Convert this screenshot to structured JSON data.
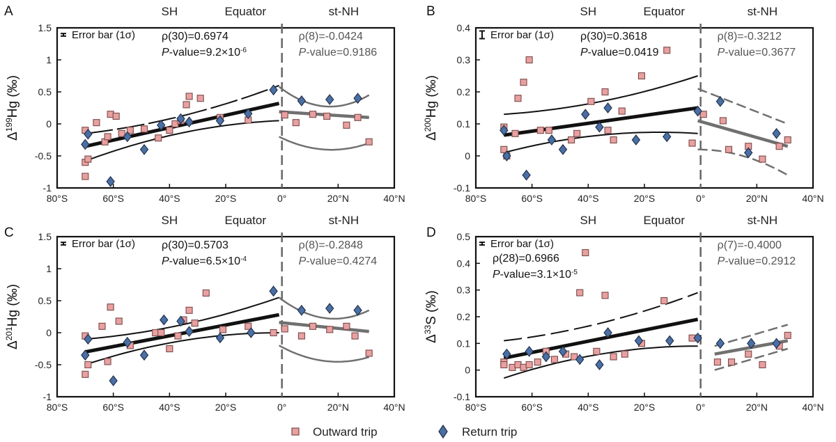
{
  "figure": {
    "legend": {
      "outward_label": "Outward trip",
      "return_label": "Return trip"
    },
    "colors": {
      "outward_fill": "#e8a0a0",
      "outward_stroke": "#7a4a4a",
      "return_fill": "#4a6fa5",
      "return_stroke": "#1e2c44",
      "fit_sh": "#111111",
      "fit_nh": "#707070",
      "equator": "#666666"
    },
    "region_labels": {
      "sh": "SH",
      "equator": "Equator",
      "nh": "st-NH"
    }
  },
  "chart_data": [
    {
      "panel": "A",
      "type": "scatter",
      "ylabel_prefix": "Δ",
      "ylabel_sup": "199",
      "ylabel_rest": "Hg (‰)",
      "xlim": [
        -80,
        40
      ],
      "ylim": [
        -1,
        1.5
      ],
      "xticks": [
        -80,
        -60,
        -40,
        -20,
        0,
        20,
        40
      ],
      "xtick_labels": [
        "80°S",
        "60°S",
        "40°S",
        "20°S",
        "0°",
        "20°N",
        "40°N"
      ],
      "yticks": [
        -1,
        -0.5,
        0,
        0.5,
        1,
        1.5
      ],
      "ytick_labels": [
        "-1",
        "-0.5",
        "0",
        "0.5",
        "1",
        "1.5"
      ],
      "error_bar_label": "Error bar (1σ)",
      "error_bar_halfwidth": 0.02,
      "sh_stats": {
        "rho": "ρ(30)=0.6974",
        "p_label": "P",
        "p_value": "-value=9.2×10",
        "p_exp": "-6"
      },
      "nh_stats": {
        "rho": "ρ(8)=-0.0424",
        "p_label": "P",
        "p_value": "-value=0.9186",
        "p_exp": ""
      },
      "outward": [
        [
          -70,
          -0.82
        ],
        [
          -70,
          -0.6
        ],
        [
          -69,
          -0.55
        ],
        [
          -70,
          -0.1
        ],
        [
          -66,
          0.02
        ],
        [
          -63,
          -0.28
        ],
        [
          -62,
          -0.2
        ],
        [
          -61,
          0.15
        ],
        [
          -59,
          0.12
        ],
        [
          -57,
          -0.15
        ],
        [
          -54,
          -0.1
        ],
        [
          -49,
          -0.08
        ],
        [
          -44,
          -0.22
        ],
        [
          -40,
          -0.1
        ],
        [
          -38,
          0.0
        ],
        [
          -34,
          0.3
        ],
        [
          -33,
          0.43
        ],
        [
          -29,
          0.4
        ],
        [
          -22,
          0.1
        ],
        [
          -12,
          0.06
        ],
        [
          5,
          0.02
        ],
        [
          11,
          0.15
        ],
        [
          16,
          0.12
        ],
        [
          23,
          -0.02
        ],
        [
          27,
          0.1
        ],
        [
          31,
          -0.28
        ],
        [
          1,
          0.14
        ],
        [
          -36,
          0.05
        ]
      ],
      "return": [
        [
          -70,
          -0.32
        ],
        [
          -69,
          -0.16
        ],
        [
          -61,
          -0.9
        ],
        [
          -55,
          -0.2
        ],
        [
          -49,
          -0.4
        ],
        [
          -43,
          -0.02
        ],
        [
          -36,
          0.08
        ],
        [
          -33,
          0.03
        ],
        [
          -22,
          0.05
        ],
        [
          -12,
          0.16
        ],
        [
          -3,
          0.53
        ],
        [
          7,
          0.36
        ],
        [
          17,
          0.38
        ],
        [
          27,
          0.4
        ]
      ],
      "sh_fit": {
        "x": [
          -70,
          -1
        ],
        "mid": [
          -0.35,
          0.32
        ],
        "upper": [
          -0.15,
          0.6
        ],
        "lower": [
          -0.58,
          0.05
        ],
        "upper_dash": [
          -40,
          -10
        ]
      },
      "nh_fit": {
        "x": [
          -1,
          31
        ],
        "mid": [
          0.19,
          0.1
        ],
        "upper": [
          0.58,
          0.45
        ],
        "lower": [
          -0.2,
          -0.3
        ],
        "upper_bulge": 0.24,
        "lower_bulge": 0.0
      }
    },
    {
      "panel": "B",
      "type": "scatter",
      "ylabel_prefix": "Δ",
      "ylabel_sup": "200",
      "ylabel_rest": "Hg (‰)",
      "xlim": [
        -80,
        40
      ],
      "ylim": [
        -0.1,
        0.4
      ],
      "xticks": [
        -80,
        -60,
        -40,
        -20,
        0,
        20,
        40
      ],
      "xtick_labels": [
        "80°S",
        "60°S",
        "40°S",
        "20°S",
        "0°",
        "20°N",
        "40°N"
      ],
      "yticks": [
        -0.1,
        0,
        0.1,
        0.2,
        0.3,
        0.4
      ],
      "ytick_labels": [
        "-0.1",
        "0",
        "0.1",
        "0.2",
        "0.3",
        "0.4"
      ],
      "error_bar_label": "Error bar (1σ)",
      "error_bar_halfwidth": 0.012,
      "sh_stats": {
        "rho": "ρ(30)=0.3618",
        "p_label": "P",
        "p_value": "-value=0.0419",
        "p_exp": ""
      },
      "nh_stats": {
        "rho": "ρ(8)=-0.3212",
        "p_label": "P",
        "p_value": "-value=0.3677",
        "p_exp": ""
      },
      "outward": [
        [
          -70,
          0.09
        ],
        [
          -70,
          0.02
        ],
        [
          -69,
          0.0
        ],
        [
          -65,
          0.18
        ],
        [
          -63,
          0.23
        ],
        [
          -61,
          0.3
        ],
        [
          -57,
          0.08
        ],
        [
          -54,
          0.08
        ],
        [
          -46,
          0.05
        ],
        [
          -44,
          0.07
        ],
        [
          -39,
          0.17
        ],
        [
          -34,
          0.2
        ],
        [
          -33,
          0.08
        ],
        [
          -31,
          0.05
        ],
        [
          -28,
          0.14
        ],
        [
          -21,
          0.25
        ],
        [
          -12,
          0.33
        ],
        [
          -3,
          0.04
        ],
        [
          1,
          0.13
        ],
        [
          8,
          0.11
        ],
        [
          10,
          0.02
        ],
        [
          17,
          0.03
        ],
        [
          22,
          -0.01
        ],
        [
          28,
          0.03
        ],
        [
          31,
          0.05
        ],
        [
          -66,
          0.07
        ]
      ],
      "return": [
        [
          -70,
          0.08
        ],
        [
          -69,
          0.0
        ],
        [
          -62,
          -0.06
        ],
        [
          -53,
          0.05
        ],
        [
          -49,
          0.02
        ],
        [
          -41,
          0.13
        ],
        [
          -36,
          0.09
        ],
        [
          -33,
          0.15
        ],
        [
          -23,
          0.05
        ],
        [
          -12,
          0.06
        ],
        [
          -1,
          0.14
        ],
        [
          7,
          0.17
        ],
        [
          17,
          0.01
        ],
        [
          27,
          0.07
        ]
      ],
      "sh_fit": {
        "x": [
          -70,
          -1
        ],
        "mid": [
          0.065,
          0.15
        ],
        "upper": [
          0.13,
          0.25
        ],
        "lower": [
          0.01,
          0.07
        ],
        "upper_dash": null
      },
      "nh_fit": {
        "x": [
          -1,
          31
        ],
        "mid": [
          0.11,
          0.03
        ],
        "upper": [
          0.21,
          0.1
        ],
        "lower": [
          0.02,
          -0.06
        ],
        "upper_bulge": 0.0,
        "lower_bulge": -0.02
      }
    },
    {
      "panel": "C",
      "type": "scatter",
      "ylabel_prefix": "Δ",
      "ylabel_sup": "201",
      "ylabel_rest": "Hg (‰)",
      "xlim": [
        -80,
        40
      ],
      "ylim": [
        -1,
        1.5
      ],
      "xticks": [
        -80,
        -60,
        -40,
        -20,
        0,
        20,
        40
      ],
      "xtick_labels": [
        "80°S",
        "60°S",
        "40°S",
        "20°S",
        "0°",
        "20°N",
        "40°N"
      ],
      "yticks": [
        -1,
        -0.5,
        0,
        0.5,
        1,
        1.5
      ],
      "ytick_labels": [
        "-1",
        "-0.5",
        "0",
        "0.5",
        "1",
        "1.5"
      ],
      "error_bar_label": "Error bar (1σ)",
      "error_bar_halfwidth": 0.02,
      "sh_stats": {
        "rho": "ρ(30)=0.5703",
        "p_label": "P",
        "p_value": "-value=6.5×10",
        "p_exp": "-4"
      },
      "nh_stats": {
        "rho": "ρ(8)=-0.2848",
        "p_label": "P",
        "p_value": "-value=0.4274",
        "p_exp": ""
      },
      "outward": [
        [
          -70,
          -0.65
        ],
        [
          -69,
          -0.5
        ],
        [
          -70,
          -0.05
        ],
        [
          -64,
          0.1
        ],
        [
          -62,
          -0.45
        ],
        [
          -61,
          0.4
        ],
        [
          -58,
          0.18
        ],
        [
          -54,
          -0.2
        ],
        [
          -45,
          0.0
        ],
        [
          -40,
          -0.25
        ],
        [
          -37,
          -0.05
        ],
        [
          -35,
          0.2
        ],
        [
          -33,
          0.35
        ],
        [
          -31,
          0.15
        ],
        [
          -27,
          0.62
        ],
        [
          -21,
          0.05
        ],
        [
          -12,
          0.1
        ],
        [
          -3,
          0.0
        ],
        [
          1,
          0.06
        ],
        [
          7,
          -0.05
        ],
        [
          11,
          0.1
        ],
        [
          17,
          0.05
        ],
        [
          23,
          0.1
        ],
        [
          26,
          -0.05
        ],
        [
          31,
          -0.32
        ],
        [
          -43,
          0.0
        ]
      ],
      "return": [
        [
          -70,
          -0.35
        ],
        [
          -69,
          -0.1
        ],
        [
          -60,
          -0.75
        ],
        [
          -55,
          -0.15
        ],
        [
          -49,
          -0.35
        ],
        [
          -42,
          0.2
        ],
        [
          -36,
          0.18
        ],
        [
          -33,
          0.02
        ],
        [
          -22,
          -0.08
        ],
        [
          -11,
          0.0
        ],
        [
          -3,
          0.65
        ],
        [
          7,
          0.35
        ],
        [
          17,
          0.38
        ],
        [
          27,
          0.35
        ]
      ],
      "sh_fit": {
        "x": [
          -70,
          -1
        ],
        "mid": [
          -0.3,
          0.28
        ],
        "upper": [
          -0.1,
          0.55
        ],
        "lower": [
          -0.5,
          0.0
        ],
        "upper_dash": null
      },
      "nh_fit": {
        "x": [
          -1,
          31
        ],
        "mid": [
          0.16,
          0.02
        ],
        "upper": [
          0.55,
          0.35
        ],
        "lower": [
          -0.2,
          -0.38
        ],
        "upper_bulge": 0.22,
        "lower_bulge": 0.0
      }
    },
    {
      "panel": "D",
      "type": "scatter",
      "ylabel_prefix": "Δ",
      "ylabel_sup": "33",
      "ylabel_rest": "S (‰)",
      "xlim": [
        -80,
        40
      ],
      "ylim": [
        -0.1,
        0.5
      ],
      "xticks": [
        -80,
        -60,
        -40,
        -20,
        0,
        20,
        40
      ],
      "xtick_labels": [
        "80°S",
        "60°S",
        "40°S",
        "20°S",
        "0°",
        "20°N",
        "40°N"
      ],
      "yticks": [
        -0.1,
        0,
        0.1,
        0.2,
        0.3,
        0.4,
        0.5
      ],
      "ytick_labels": [
        "-0.1",
        "0",
        "0.1",
        "0.2",
        "0.3",
        "0.4",
        "0.5"
      ],
      "error_bar_label": "Error bar (1σ)",
      "error_bar_halfwidth": 0.005,
      "sh_stats": {
        "rho": "ρ(28)=0.6966",
        "p_label": "P",
        "p_value": "-value=3.1×10",
        "p_exp": "-5"
      },
      "nh_stats": {
        "rho": "ρ(7)=-0.4000",
        "p_label": "P",
        "p_value": "-value=0.2912",
        "p_exp": ""
      },
      "outward": [
        [
          -70,
          0.03
        ],
        [
          -70,
          0.02
        ],
        [
          -67,
          0.01
        ],
        [
          -65,
          0.02
        ],
        [
          -63,
          0.01
        ],
        [
          -61,
          0.02
        ],
        [
          -58,
          0.03
        ],
        [
          -55,
          0.07
        ],
        [
          -52,
          0.04
        ],
        [
          -48,
          0.06
        ],
        [
          -43,
          0.29
        ],
        [
          -41,
          0.44
        ],
        [
          -37,
          0.07
        ],
        [
          -34,
          0.28
        ],
        [
          -31,
          0.05
        ],
        [
          -27,
          0.06
        ],
        [
          -21,
          0.1
        ],
        [
          -13,
          0.26
        ],
        [
          -3,
          0.12
        ],
        [
          6,
          0.03
        ],
        [
          11,
          0.03
        ],
        [
          17,
          0.06
        ],
        [
          22,
          0.02
        ],
        [
          28,
          0.09
        ],
        [
          31,
          0.13
        ],
        [
          -45,
          0.05
        ]
      ],
      "return": [
        [
          -69,
          0.06
        ],
        [
          -61,
          0.07
        ],
        [
          -55,
          0.05
        ],
        [
          -49,
          0.07
        ],
        [
          -43,
          0.04
        ],
        [
          -36,
          0.02
        ],
        [
          -33,
          0.14
        ],
        [
          -22,
          0.11
        ],
        [
          -11,
          0.11
        ],
        [
          -1,
          0.12
        ],
        [
          7,
          0.1
        ],
        [
          18,
          0.1
        ],
        [
          27,
          0.1
        ]
      ],
      "sh_fit": {
        "x": [
          -70,
          -1
        ],
        "mid": [
          0.045,
          0.19
        ],
        "upper": [
          0.11,
          0.29
        ],
        "lower": [
          -0.03,
          0.09
        ],
        "upper_dash": "long"
      },
      "nh_fit": {
        "x": [
          5,
          31
        ],
        "mid": [
          0.06,
          0.11
        ],
        "upper": [
          0.09,
          0.17
        ],
        "lower": [
          0.0,
          0.08
        ],
        "upper_bulge": 0.0,
        "lower_bulge": 0.0
      }
    }
  ]
}
